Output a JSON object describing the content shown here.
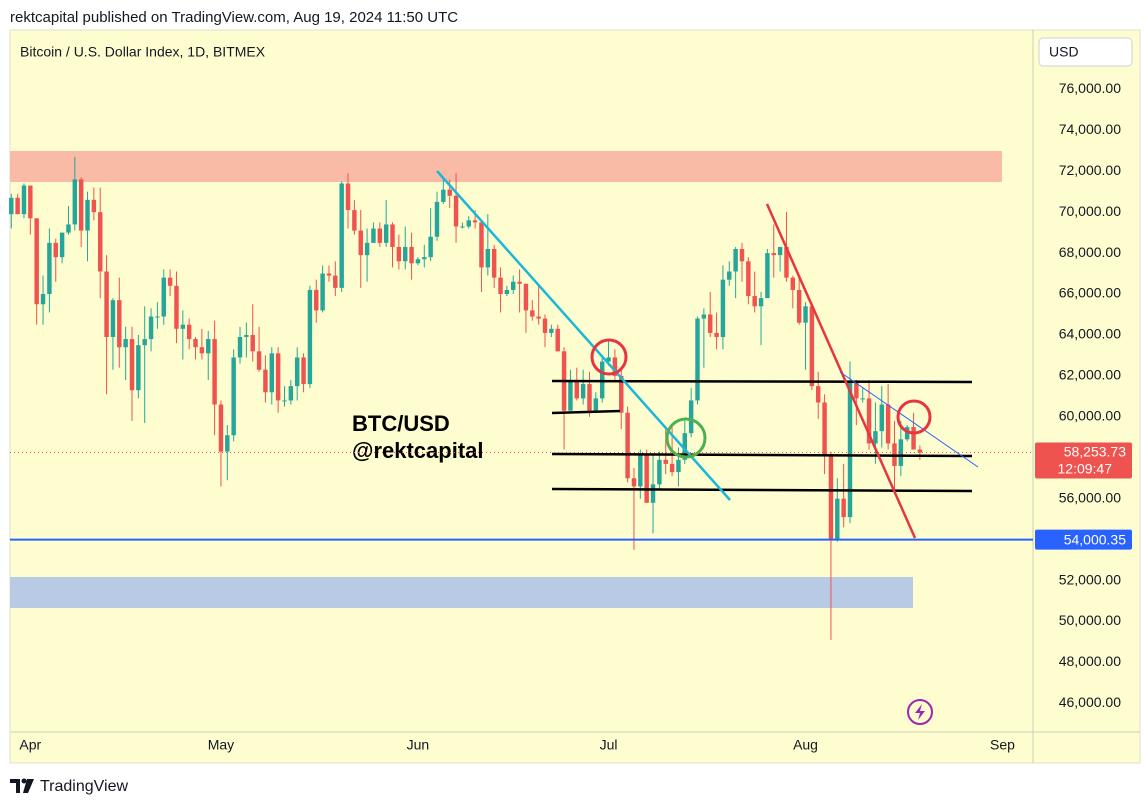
{
  "chart_data": {
    "type": "candlestick",
    "header": "rektcapital published on TradingView.com, Aug 19, 2024 11:50 UTC",
    "title": "Bitcoin / U.S. Dollar Index, 1D, BITMEX",
    "currency": "USD",
    "annotations": [
      "BTC/USD",
      "@rektcapital"
    ],
    "footer": "TradingView",
    "up_color": "#26a69a",
    "down_color": "#ef5350",
    "grid": false,
    "xlim": [
      -0.2,
      160.8
    ],
    "xticks": [
      {
        "value": 3,
        "label": "Apr"
      },
      {
        "value": 33,
        "label": "May"
      },
      {
        "value": 64,
        "label": "Jun"
      },
      {
        "value": 94,
        "label": "Jul"
      },
      {
        "value": 125,
        "label": "Aug"
      },
      {
        "value": 156,
        "label": "Sep"
      }
    ],
    "ylim": [
      44600,
      78900
    ],
    "yticks": [
      {
        "value": 46000,
        "label": "46,000.00"
      },
      {
        "value": 48000,
        "label": "48,000.00"
      },
      {
        "value": 50000,
        "label": "50,000.00"
      },
      {
        "value": 52000,
        "label": "52,000.00"
      },
      {
        "value": 54000,
        "label": "54,000.00"
      },
      {
        "value": 56000,
        "label": "56,000.00"
      },
      {
        "value": 58000,
        "label": "58,000.00"
      },
      {
        "value": 60000,
        "label": "60,000.00"
      },
      {
        "value": 62000,
        "label": "62,000.00"
      },
      {
        "value": 64000,
        "label": "64,000.00"
      },
      {
        "value": 66000,
        "label": "66,000.00"
      },
      {
        "value": 68000,
        "label": "68,000.00"
      },
      {
        "value": 70000,
        "label": "70,000.00"
      },
      {
        "value": 72000,
        "label": "72,000.00"
      },
      {
        "value": 74000,
        "label": "74,000.00"
      },
      {
        "value": 76000,
        "label": "76,000.00"
      }
    ],
    "last_price": {
      "value": 58253.73,
      "label": "58,253.73",
      "color": "#ef5350"
    },
    "countdown": "12:09:47",
    "level_line": {
      "value": 54000.35,
      "label": "54,000.35",
      "color": "#2962ff"
    },
    "candles": [
      [
        69900,
        70900,
        69200,
        70700
      ],
      [
        70700,
        70900,
        69900,
        69900
      ],
      [
        69900,
        71400,
        69700,
        71300
      ],
      [
        71300,
        71300,
        68900,
        69700
      ],
      [
        69700,
        69700,
        64500,
        65500
      ],
      [
        65500,
        66900,
        64500,
        66000
      ],
      [
        66000,
        69200,
        65100,
        68500
      ],
      [
        68500,
        68700,
        66600,
        67800
      ],
      [
        67800,
        69000,
        67500,
        69000
      ],
      [
        69000,
        70300,
        68900,
        69400
      ],
      [
        69400,
        72700,
        69100,
        71600
      ],
      [
        71600,
        71700,
        68300,
        69100
      ],
      [
        69100,
        71000,
        67600,
        70600
      ],
      [
        70600,
        71200,
        69600,
        70000
      ],
      [
        70000,
        71200,
        65800,
        67100
      ],
      [
        67100,
        67900,
        61100,
        63900
      ],
      [
        63900,
        65800,
        62300,
        65700
      ],
      [
        65700,
        66800,
        62400,
        63400
      ],
      [
        63400,
        64400,
        61800,
        63800
      ],
      [
        63800,
        64400,
        59800,
        61300
      ],
      [
        61300,
        64000,
        60900,
        63500
      ],
      [
        63500,
        65400,
        59700,
        63800
      ],
      [
        63800,
        65300,
        63200,
        64900
      ],
      [
        64900,
        65600,
        64300,
        64900
      ],
      [
        64900,
        67200,
        64500,
        66800
      ],
      [
        66800,
        67200,
        65900,
        66400
      ],
      [
        66400,
        67100,
        63600,
        64300
      ],
      [
        64300,
        65200,
        62800,
        64500
      ],
      [
        64500,
        64800,
        63300,
        63800
      ],
      [
        63800,
        63900,
        62800,
        63400
      ],
      [
        63400,
        64300,
        62800,
        63100
      ],
      [
        63100,
        64200,
        61800,
        63800
      ],
      [
        63800,
        64700,
        59100,
        60600
      ],
      [
        60600,
        60800,
        56600,
        58300
      ],
      [
        58300,
        59600,
        56900,
        59100
      ],
      [
        59100,
        63300,
        58800,
        62900
      ],
      [
        62900,
        64400,
        62600,
        63900
      ],
      [
        63900,
        64600,
        62900,
        64000
      ],
      [
        64000,
        65500,
        62700,
        63200
      ],
      [
        63200,
        64400,
        62200,
        62300
      ],
      [
        62300,
        63000,
        60700,
        61200
      ],
      [
        61200,
        63400,
        60600,
        63100
      ],
      [
        63100,
        63400,
        60200,
        60800
      ],
      [
        60800,
        61500,
        60500,
        60800
      ],
      [
        60800,
        61800,
        60600,
        61500
      ],
      [
        61500,
        63400,
        60800,
        62900
      ],
      [
        62900,
        63100,
        61200,
        61600
      ],
      [
        61600,
        66400,
        61400,
        66200
      ],
      [
        66200,
        66700,
        64600,
        65200
      ],
      [
        65200,
        67400,
        65100,
        67000
      ],
      [
        67000,
        67400,
        66600,
        66900
      ],
      [
        66900,
        67600,
        65900,
        66300
      ],
      [
        66300,
        71500,
        66100,
        71400
      ],
      [
        71400,
        71900,
        69200,
        70100
      ],
      [
        70100,
        70600,
        68900,
        69100
      ],
      [
        69100,
        70100,
        66300,
        67900
      ],
      [
        67900,
        69200,
        66600,
        68500
      ],
      [
        68500,
        69500,
        68500,
        69200
      ],
      [
        69200,
        69500,
        68300,
        68500
      ],
      [
        68500,
        70600,
        68300,
        69400
      ],
      [
        69400,
        69500,
        67300,
        68300
      ],
      [
        68300,
        68900,
        67200,
        67600
      ],
      [
        67600,
        69300,
        67200,
        68300
      ],
      [
        68300,
        69000,
        66700,
        67500
      ],
      [
        67500,
        67800,
        67400,
        67700
      ],
      [
        67700,
        68400,
        67300,
        67800
      ],
      [
        67800,
        70200,
        67600,
        68800
      ],
      [
        68800,
        71000,
        68600,
        70500
      ],
      [
        70500,
        71700,
        70400,
        71100
      ],
      [
        71100,
        71600,
        70200,
        70800
      ],
      [
        70800,
        71900,
        68500,
        69300
      ],
      [
        69300,
        69500,
        69200,
        69300
      ],
      [
        69300,
        69800,
        69200,
        69600
      ],
      [
        69600,
        70100,
        69200,
        69500
      ],
      [
        69500,
        69600,
        66100,
        67300
      ],
      [
        67300,
        69900,
        66900,
        68200
      ],
      [
        68200,
        68400,
        66300,
        66800
      ],
      [
        66800,
        67300,
        65100,
        66000
      ],
      [
        66000,
        66400,
        65900,
        66200
      ],
      [
        66200,
        66900,
        66000,
        66600
      ],
      [
        66600,
        67200,
        65100,
        66500
      ],
      [
        66500,
        66500,
        64100,
        65200
      ],
      [
        65200,
        65700,
        64700,
        64900
      ],
      [
        64900,
        66400,
        64500,
        64800
      ],
      [
        64800,
        65000,
        63400,
        64100
      ],
      [
        64100,
        64500,
        63900,
        64300
      ],
      [
        64300,
        64500,
        63200,
        63200
      ],
      [
        63200,
        63400,
        58400,
        60300
      ],
      [
        60300,
        62300,
        60300,
        61800
      ],
      [
        61800,
        62400,
        60800,
        60900
      ],
      [
        60900,
        62300,
        60600,
        61600
      ],
      [
        61600,
        62200,
        60000,
        60300
      ],
      [
        60300,
        61200,
        60300,
        60900
      ],
      [
        60900,
        63000,
        60700,
        62700
      ],
      [
        62700,
        63800,
        62500,
        62900
      ],
      [
        62900,
        63300,
        61800,
        62000
      ],
      [
        62000,
        62300,
        59400,
        60200
      ],
      [
        60200,
        60500,
        56800,
        57000
      ],
      [
        57000,
        57500,
        53500,
        56600
      ],
      [
        56600,
        58400,
        56000,
        58200
      ],
      [
        58200,
        58400,
        55800,
        55800
      ],
      [
        55800,
        58200,
        54300,
        56700
      ],
      [
        56700,
        58300,
        56400,
        57900
      ],
      [
        57900,
        59400,
        57200,
        57700
      ],
      [
        57700,
        59500,
        57100,
        57300
      ],
      [
        57300,
        58500,
        56600,
        57900
      ],
      [
        57900,
        59800,
        57700,
        59200
      ],
      [
        59200,
        61400,
        59000,
        60800
      ],
      [
        60800,
        64900,
        60600,
        64800
      ],
      [
        64800,
        65300,
        62400,
        65000
      ],
      [
        65000,
        66100,
        63900,
        64100
      ],
      [
        64100,
        65100,
        63300,
        63900
      ],
      [
        63900,
        67400,
        63300,
        66700
      ],
      [
        66700,
        67600,
        66400,
        67100
      ],
      [
        67100,
        68300,
        65800,
        68200
      ],
      [
        68200,
        68500,
        66600,
        67600
      ],
      [
        67600,
        67800,
        65500,
        65900
      ],
      [
        65900,
        67100,
        65100,
        65400
      ],
      [
        65400,
        66100,
        63500,
        65800
      ],
      [
        65800,
        68200,
        65800,
        68000
      ],
      [
        68000,
        69400,
        66800,
        67900
      ],
      [
        67900,
        68300,
        67100,
        68300
      ],
      [
        68300,
        70000,
        66600,
        66800
      ],
      [
        66800,
        66900,
        65300,
        66200
      ],
      [
        66200,
        66800,
        64500,
        64600
      ],
      [
        64600,
        65600,
        62300,
        65400
      ],
      [
        65400,
        65600,
        61300,
        61500
      ],
      [
        61500,
        62200,
        59900,
        60700
      ],
      [
        60700,
        61100,
        57200,
        58100
      ],
      [
        58100,
        58300,
        49100,
        54000
      ],
      [
        54000,
        57000,
        53900,
        56000
      ],
      [
        56000,
        57700,
        54600,
        55100
      ],
      [
        55100,
        62700,
        54800,
        61700
      ],
      [
        61700,
        61800,
        59600,
        60900
      ],
      [
        60900,
        61400,
        60700,
        60900
      ],
      [
        60900,
        61800,
        58400,
        58700
      ],
      [
        58700,
        60700,
        57700,
        59300
      ],
      [
        59300,
        61500,
        58500,
        60600
      ],
      [
        60600,
        61600,
        58400,
        58700
      ],
      [
        58700,
        59800,
        56200,
        57600
      ],
      [
        57600,
        59800,
        57100,
        58900
      ],
      [
        58900,
        59600,
        58800,
        59500
      ],
      [
        59500,
        60200,
        58400,
        58400
      ],
      [
        58400,
        58600,
        57900,
        58253.73
      ]
    ]
  }
}
